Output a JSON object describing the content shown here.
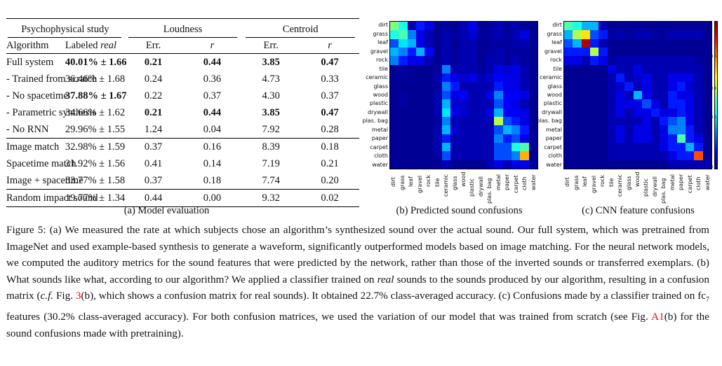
{
  "table": {
    "group_headers": {
      "study": "Psychophysical study",
      "loudness": "Loudness",
      "centroid": "Centroid"
    },
    "col_headers": {
      "algorithm": "Algorithm",
      "labeled_prefix": "Labeled ",
      "labeled_italic": "real",
      "err1": "Err.",
      "r1": "r",
      "err2": "Err.",
      "r2": "r"
    },
    "rows": [
      {
        "alg": "Full system",
        "labeled": "40.01% ± 1.66",
        "l_err": "0.21",
        "l_r": "0.44",
        "c_err": "3.85",
        "c_r": "0.47"
      },
      {
        "alg": "- Trained from scratch",
        "labeled": "36.46% ± 1.68",
        "l_err": "0.24",
        "l_r": "0.36",
        "c_err": "4.73",
        "c_r": "0.33"
      },
      {
        "alg": "- No spacetime",
        "labeled": "37.88% ± 1.67",
        "l_err": "0.22",
        "l_r": "0.37",
        "c_err": "4.30",
        "c_r": "0.37"
      },
      {
        "alg": "- Parametric synthesis",
        "labeled": "34.66% ± 1.62",
        "l_err": "0.21",
        "l_r": "0.44",
        "c_err": "3.85",
        "c_r": "0.47"
      },
      {
        "alg": "- No RNN",
        "labeled": "29.96% ± 1.55",
        "l_err": "1.24",
        "l_r": "0.04",
        "c_err": "7.92",
        "c_r": "0.28"
      },
      {
        "alg": "Image match",
        "labeled": "32.98% ± 1.59",
        "l_err": "0.37",
        "l_r": "0.16",
        "c_err": "8.39",
        "c_r": "0.18"
      },
      {
        "alg": "Spacetime match",
        "labeled": "31.92% ± 1.56",
        "l_err": "0.41",
        "l_r": "0.14",
        "c_err": "7.19",
        "c_r": "0.21"
      },
      {
        "alg": "Image + spacetime",
        "labeled": "33.77% ± 1.58",
        "l_err": "0.37",
        "l_r": "0.18",
        "c_err": "7.74",
        "c_r": "0.20"
      },
      {
        "alg": "Random impact sound",
        "labeled": "19.77% ± 1.34",
        "l_err": "0.44",
        "l_r": "0.00",
        "c_err": "9.32",
        "c_r": "0.02"
      }
    ],
    "caption": "(a) Model evaluation"
  },
  "chart_data": [
    {
      "type": "heatmap",
      "title": "(b) Predicted sound confusions",
      "row_labels": [
        "dirt",
        "grass",
        "leaf",
        "gravel",
        "rock",
        "tile",
        "ceramic",
        "glass",
        "wood",
        "plastic",
        "drywall",
        "plas. bag",
        "metal",
        "paper",
        "carpet",
        "cloth",
        "water"
      ],
      "col_labels": [
        "dirt",
        "grass",
        "leaf",
        "gravel",
        "rock",
        "tile",
        "ceramic",
        "glass",
        "wood",
        "plastic",
        "drywall",
        "plas. bag",
        "metal",
        "paper",
        "carpet",
        "cloth",
        "water"
      ],
      "values": [
        [
          0.5,
          0.4,
          0.05,
          0.15,
          0.1,
          0.02,
          0.03,
          0.02,
          0.05,
          0.1,
          0.02,
          0.03,
          0.05,
          0.03,
          0.05,
          0.02,
          0.02
        ],
        [
          0.4,
          0.45,
          0.25,
          0.1,
          0.05,
          0.02,
          0.05,
          0.03,
          0.05,
          0.08,
          0.03,
          0.03,
          0.05,
          0.03,
          0.05,
          0.1,
          0.02
        ],
        [
          0.2,
          0.35,
          0.3,
          0.1,
          0.05,
          0.02,
          0.05,
          0.02,
          0.05,
          0.05,
          0.02,
          0.03,
          0.03,
          0.03,
          0.05,
          0.05,
          0.02
        ],
        [
          0.3,
          0.25,
          0.15,
          0.3,
          0.12,
          0.02,
          0.05,
          0.03,
          0.05,
          0.05,
          0.02,
          0.03,
          0.05,
          0.03,
          0.03,
          0.03,
          0.02
        ],
        [
          0.25,
          0.15,
          0.1,
          0.1,
          0.05,
          0.02,
          0.05,
          0.03,
          0.05,
          0.05,
          0.02,
          0.05,
          0.05,
          0.03,
          0.05,
          0.03,
          0.02
        ],
        [
          0.02,
          0.03,
          0.02,
          0.02,
          0.02,
          0.03,
          0.25,
          0.05,
          0.05,
          0.05,
          0.03,
          0.05,
          0.1,
          0.08,
          0.1,
          0.05,
          0.02
        ],
        [
          0.02,
          0.03,
          0.02,
          0.02,
          0.02,
          0.05,
          0.15,
          0.1,
          0.08,
          0.1,
          0.05,
          0.08,
          0.12,
          0.1,
          0.1,
          0.05,
          0.02
        ],
        [
          0.02,
          0.02,
          0.02,
          0.02,
          0.02,
          0.03,
          0.25,
          0.15,
          0.05,
          0.05,
          0.05,
          0.05,
          0.15,
          0.1,
          0.1,
          0.05,
          0.02
        ],
        [
          0.02,
          0.03,
          0.02,
          0.02,
          0.02,
          0.05,
          0.2,
          0.1,
          0.12,
          0.05,
          0.05,
          0.1,
          0.25,
          0.12,
          0.12,
          0.1,
          0.02
        ],
        [
          0.02,
          0.03,
          0.02,
          0.02,
          0.02,
          0.05,
          0.3,
          0.08,
          0.08,
          0.05,
          0.05,
          0.05,
          0.2,
          0.12,
          0.1,
          0.05,
          0.02
        ],
        [
          0.02,
          0.02,
          0.02,
          0.02,
          0.02,
          0.05,
          0.35,
          0.1,
          0.08,
          0.05,
          0.05,
          0.1,
          0.3,
          0.12,
          0.12,
          0.1,
          0.02
        ],
        [
          0.02,
          0.02,
          0.02,
          0.02,
          0.02,
          0.03,
          0.25,
          0.05,
          0.05,
          0.05,
          0.05,
          0.05,
          0.55,
          0.2,
          0.15,
          0.1,
          0.02
        ],
        [
          0.02,
          0.02,
          0.02,
          0.02,
          0.02,
          0.05,
          0.3,
          0.08,
          0.05,
          0.05,
          0.05,
          0.05,
          0.2,
          0.3,
          0.25,
          0.15,
          0.02
        ],
        [
          0.02,
          0.02,
          0.02,
          0.02,
          0.02,
          0.05,
          0.15,
          0.05,
          0.05,
          0.05,
          0.05,
          0.05,
          0.25,
          0.15,
          0.2,
          0.1,
          0.02
        ],
        [
          0.02,
          0.02,
          0.02,
          0.02,
          0.02,
          0.05,
          0.3,
          0.05,
          0.05,
          0.05,
          0.05,
          0.05,
          0.2,
          0.2,
          0.4,
          0.45,
          0.02
        ],
        [
          0.02,
          0.02,
          0.02,
          0.02,
          0.02,
          0.03,
          0.2,
          0.05,
          0.05,
          0.05,
          0.05,
          0.05,
          0.2,
          0.2,
          0.25,
          0.7,
          0.02
        ],
        [
          0.02,
          0.02,
          0.02,
          0.02,
          0.02,
          0.02,
          0.05,
          0.02,
          0.02,
          0.02,
          0.02,
          0.05,
          0.1,
          0.05,
          0.1,
          0.1,
          0.03
        ]
      ]
    },
    {
      "type": "heatmap",
      "title": "(c) CNN feature confusions",
      "row_labels": [
        "dirt",
        "grass",
        "leaf",
        "gravel",
        "rock",
        "tile",
        "ceramic",
        "glass",
        "wood",
        "plastic",
        "drywall",
        "plas. bag",
        "metal",
        "paper",
        "carpet",
        "cloth",
        "water"
      ],
      "col_labels": [
        "dirt",
        "grass",
        "leaf",
        "gravel",
        "rock",
        "tile",
        "ceramic",
        "glass",
        "wood",
        "plastic",
        "drywall",
        "plas. bag",
        "metal",
        "paper",
        "carpet",
        "cloth",
        "water"
      ],
      "colorbar_ticks": [
        "0.6",
        "0.4",
        "0.2",
        "0.0"
      ],
      "values": [
        [
          0.45,
          0.4,
          0.3,
          0.3,
          0.05,
          0.02,
          0.02,
          0.02,
          0.02,
          0.02,
          0.02,
          0.02,
          0.02,
          0.02,
          0.02,
          0.02,
          0.02
        ],
        [
          0.3,
          0.55,
          0.65,
          0.2,
          0.15,
          0.03,
          0.05,
          0.03,
          0.05,
          0.05,
          0.03,
          0.03,
          0.05,
          0.05,
          0.05,
          0.05,
          0.02
        ],
        [
          0.2,
          0.3,
          0.95,
          0.15,
          0.05,
          0.02,
          0.02,
          0.02,
          0.02,
          0.02,
          0.02,
          0.02,
          0.02,
          0.02,
          0.02,
          0.02,
          0.02
        ],
        [
          0.15,
          0.15,
          0.15,
          0.55,
          0.15,
          0.02,
          0.02,
          0.02,
          0.02,
          0.02,
          0.02,
          0.02,
          0.02,
          0.02,
          0.02,
          0.02,
          0.02
        ],
        [
          0.1,
          0.1,
          0.05,
          0.15,
          0.1,
          0.03,
          0.05,
          0.05,
          0.05,
          0.05,
          0.05,
          0.05,
          0.05,
          0.05,
          0.05,
          0.03,
          0.02
        ],
        [
          0.02,
          0.02,
          0.02,
          0.02,
          0.02,
          0.1,
          0.05,
          0.05,
          0.1,
          0.05,
          0.05,
          0.05,
          0.05,
          0.05,
          0.05,
          0.05,
          0.02
        ],
        [
          0.02,
          0.02,
          0.02,
          0.02,
          0.02,
          0.05,
          0.15,
          0.05,
          0.08,
          0.1,
          0.05,
          0.05,
          0.1,
          0.1,
          0.1,
          0.05,
          0.02
        ],
        [
          0.02,
          0.02,
          0.02,
          0.02,
          0.02,
          0.05,
          0.08,
          0.15,
          0.05,
          0.1,
          0.05,
          0.05,
          0.1,
          0.15,
          0.08,
          0.05,
          0.02
        ],
        [
          0.02,
          0.02,
          0.02,
          0.02,
          0.02,
          0.05,
          0.1,
          0.05,
          0.3,
          0.1,
          0.05,
          0.05,
          0.15,
          0.1,
          0.1,
          0.05,
          0.02
        ],
        [
          0.02,
          0.02,
          0.02,
          0.02,
          0.02,
          0.05,
          0.1,
          0.1,
          0.1,
          0.2,
          0.1,
          0.05,
          0.15,
          0.15,
          0.1,
          0.05,
          0.02
        ],
        [
          0.02,
          0.02,
          0.02,
          0.02,
          0.02,
          0.05,
          0.1,
          0.05,
          0.1,
          0.1,
          0.15,
          0.1,
          0.1,
          0.15,
          0.1,
          0.05,
          0.02
        ],
        [
          0.02,
          0.02,
          0.02,
          0.02,
          0.02,
          0.05,
          0.05,
          0.05,
          0.05,
          0.1,
          0.05,
          0.15,
          0.2,
          0.25,
          0.1,
          0.05,
          0.02
        ],
        [
          0.02,
          0.02,
          0.02,
          0.02,
          0.02,
          0.05,
          0.1,
          0.05,
          0.1,
          0.1,
          0.05,
          0.1,
          0.25,
          0.25,
          0.15,
          0.05,
          0.02
        ],
        [
          0.02,
          0.02,
          0.02,
          0.02,
          0.02,
          0.05,
          0.1,
          0.05,
          0.1,
          0.1,
          0.05,
          0.1,
          0.15,
          0.45,
          0.15,
          0.1,
          0.02
        ],
        [
          0.02,
          0.02,
          0.02,
          0.02,
          0.02,
          0.05,
          0.05,
          0.05,
          0.05,
          0.05,
          0.05,
          0.1,
          0.15,
          0.15,
          0.3,
          0.15,
          0.02
        ],
        [
          0.02,
          0.02,
          0.02,
          0.02,
          0.02,
          0.05,
          0.05,
          0.05,
          0.05,
          0.05,
          0.05,
          0.05,
          0.1,
          0.15,
          0.15,
          0.8,
          0.02
        ],
        [
          0.02,
          0.02,
          0.02,
          0.02,
          0.02,
          0.02,
          0.02,
          0.02,
          0.02,
          0.02,
          0.02,
          0.02,
          0.05,
          0.05,
          0.05,
          0.05,
          0.05
        ]
      ]
    }
  ],
  "figure_caption": {
    "p1": "Figure 5: (a) We measured the rate at which subjects chose an algorithm’s synthesized sound over the actual sound. Our full system, which was pretrained from ImageNet and used example-based synthesis to generate a waveform, significantly outperformed models based on image matching. For the neural network models, we computed the auditory metrics for the sound features that were predicted by the network, rather than those of the inverted sounds or transferred exemplars. (b) What sounds like what, according to our algorithm? We applied a classifier trained on ",
    "real": "real",
    "p2": " sounds to the sounds produced by our algorithm, resulting in a confusion matrix (",
    "cf": "c.f.",
    "p3": " Fig. ",
    "ref1": "3",
    "p4": "(b), which shows a confusion matrix for real sounds). It obtained 22.7% class-averaged accuracy. (c) Confusions made by a classifier trained on fc",
    "sub7": "7",
    "p5": " features (30.2% class-averaged accuracy). For both confusion matrices, we used the variation of our model that was trained from scratch (see Fig. ",
    "ref2": "A1",
    "p6": "(b) for the sound confusions made with pretraining)."
  }
}
